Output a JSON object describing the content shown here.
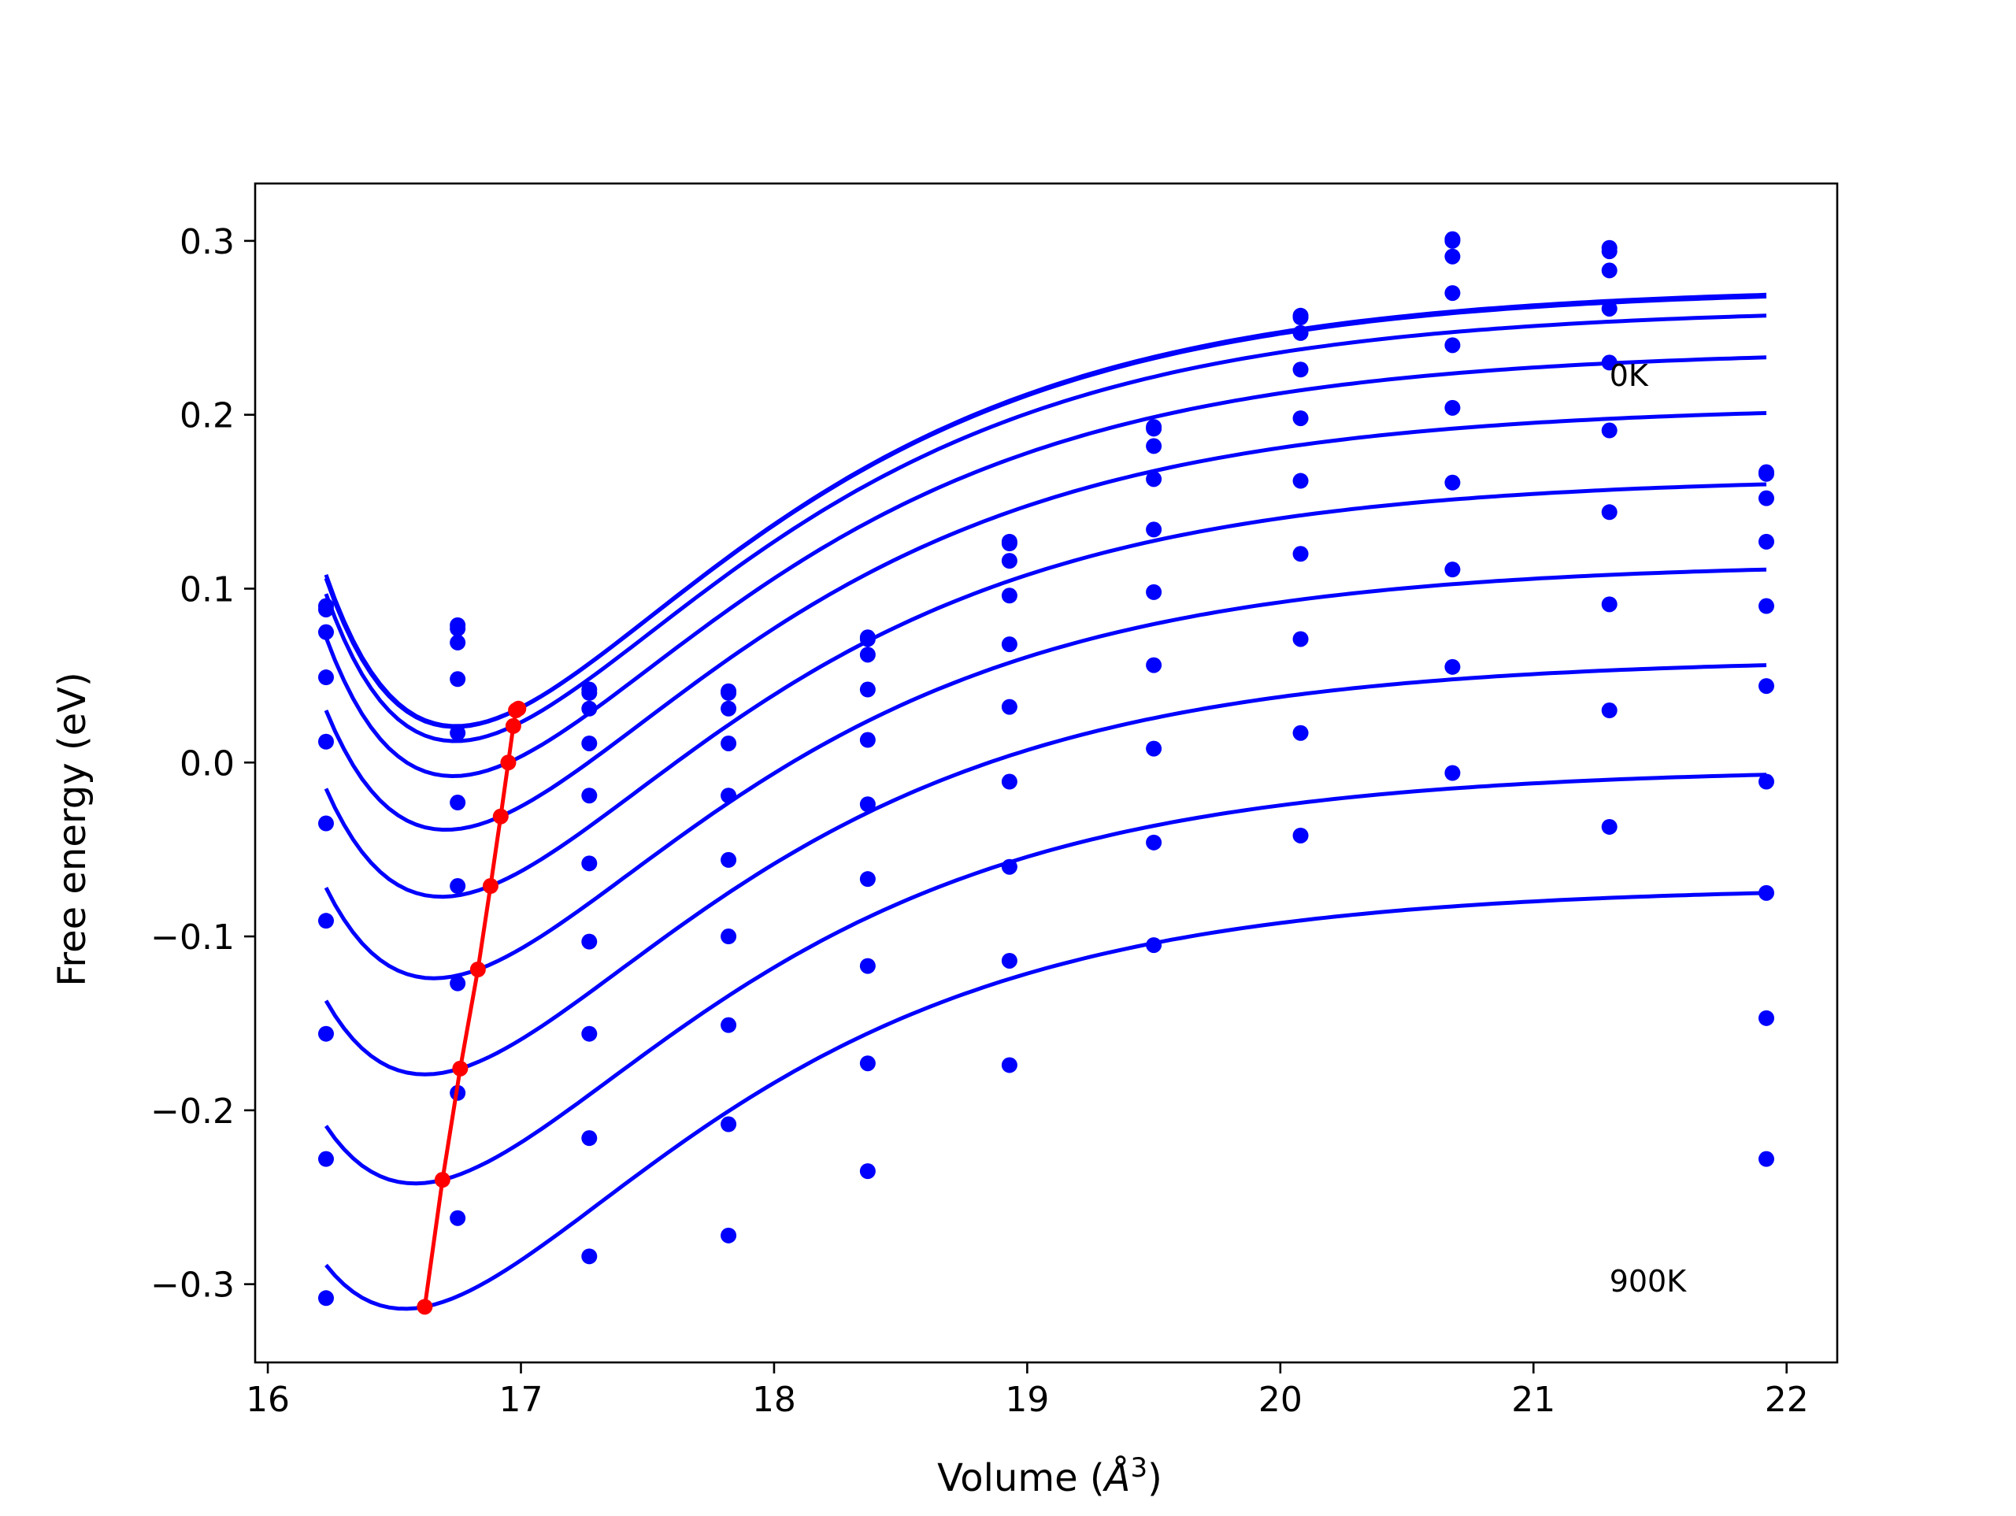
{
  "chart_data": {
    "type": "scatter",
    "title": "",
    "xlabel": "Volume (",
    "xlabel_unit": "Å",
    "xlabel_exp": "3",
    "xlabel_close": ")",
    "ylabel": "Free energy (eV)",
    "xlim": [
      15.95,
      22.2
    ],
    "ylim": [
      -0.345,
      0.333
    ],
    "xticks": [
      16,
      17,
      18,
      19,
      20,
      21,
      22
    ],
    "xtick_labels": [
      "16",
      "17",
      "18",
      "19",
      "20",
      "21",
      "22"
    ],
    "yticks": [
      -0.3,
      -0.2,
      -0.1,
      0.0,
      0.1,
      0.2,
      0.3
    ],
    "ytick_labels": [
      "−0.3",
      "−0.2",
      "−0.1",
      "0.0",
      "0.1",
      "0.2",
      "0.3"
    ],
    "grid": false,
    "annotations": [
      {
        "text": "0K",
        "x": 21.3,
        "y": 0.223
      },
      {
        "text": "900K",
        "x": 21.3,
        "y": -0.298
      }
    ],
    "colors": {
      "curves": "#0000ff",
      "points": "#0000ff",
      "minima": "#ff0000"
    },
    "volumes": [
      16.23,
      16.75,
      17.27,
      17.82,
      18.37,
      18.93,
      19.5,
      20.08,
      20.68,
      21.3,
      21.92
    ],
    "series": [
      {
        "E": [
          0.09,
          0.079,
          0.042,
          0.041,
          0.072,
          0.127,
          0.193,
          0.257,
          0.301,
          0.296,
          0.167
        ],
        "curve": {
          "v0": 16.99,
          "e0": 0.031,
          "e_left": 0.108,
          "e_right": 0.269
        }
      },
      {
        "E": [
          0.088,
          0.077,
          0.04,
          0.04,
          0.071,
          0.126,
          0.192,
          0.256,
          0.3,
          0.294,
          0.166
        ],
        "curve": {
          "v0": 16.98,
          "e0": 0.03,
          "e_left": 0.106,
          "e_right": 0.268
        }
      },
      {
        "E": [
          0.075,
          0.069,
          0.031,
          0.031,
          0.062,
          0.116,
          0.182,
          0.247,
          0.291,
          0.283,
          0.152
        ],
        "curve": {
          "v0": 16.97,
          "e0": 0.021,
          "e_left": 0.097,
          "e_right": 0.257
        }
      },
      {
        "E": [
          0.049,
          0.048,
          0.011,
          0.011,
          0.042,
          0.096,
          0.163,
          0.226,
          0.27,
          0.261,
          0.127
        ],
        "curve": {
          "v0": 16.95,
          "e0": 0.0,
          "e_left": 0.072,
          "e_right": 0.233
        }
      },
      {
        "E": [
          0.012,
          0.017,
          -0.019,
          -0.019,
          0.013,
          0.068,
          0.134,
          0.198,
          0.24,
          0.23,
          0.09
        ],
        "curve": {
          "v0": 16.92,
          "e0": -0.031,
          "e_left": 0.03,
          "e_right": 0.201
        }
      },
      {
        "E": [
          -0.035,
          -0.023,
          -0.058,
          -0.056,
          -0.024,
          0.032,
          0.098,
          0.162,
          0.204,
          0.191,
          0.044
        ],
        "curve": {
          "v0": 16.88,
          "e0": -0.071,
          "e_left": -0.015,
          "e_right": 0.16
        }
      },
      {
        "E": [
          -0.091,
          -0.071,
          -0.103,
          -0.1,
          -0.067,
          -0.011,
          0.056,
          0.12,
          0.161,
          0.144,
          -0.011
        ],
        "curve": {
          "v0": 16.83,
          "e0": -0.119,
          "e_left": -0.072,
          "e_right": 0.111
        }
      },
      {
        "E": [
          -0.156,
          -0.127,
          -0.156,
          -0.151,
          -0.117,
          -0.06,
          0.008,
          0.071,
          0.111,
          0.091,
          -0.075
        ],
        "curve": {
          "v0": 16.76,
          "e0": -0.176,
          "e_left": -0.137,
          "e_right": 0.056
        }
      },
      {
        "E": [
          -0.228,
          -0.19,
          -0.216,
          -0.208,
          -0.173,
          -0.114,
          -0.046,
          0.017,
          0.055,
          0.03,
          -0.147
        ],
        "curve": {
          "v0": 16.69,
          "e0": -0.24,
          "e_left": -0.209,
          "e_right": -0.007
        }
      },
      {
        "E": [
          -0.308,
          -0.262,
          -0.284,
          -0.272,
          -0.235,
          -0.174,
          -0.105,
          -0.042,
          -0.006,
          -0.037,
          -0.228
        ],
        "curve": {
          "v0": 16.62,
          "e0": -0.313,
          "e_left": -0.289,
          "e_right": -0.075
        }
      }
    ],
    "minima": {
      "x": [
        16.62,
        16.69,
        16.76,
        16.83,
        16.88,
        16.92,
        16.95,
        16.97,
        16.98,
        16.99
      ],
      "y": [
        -0.313,
        -0.24,
        -0.176,
        -0.119,
        -0.071,
        -0.031,
        0.0,
        0.021,
        0.03,
        0.031
      ]
    }
  }
}
